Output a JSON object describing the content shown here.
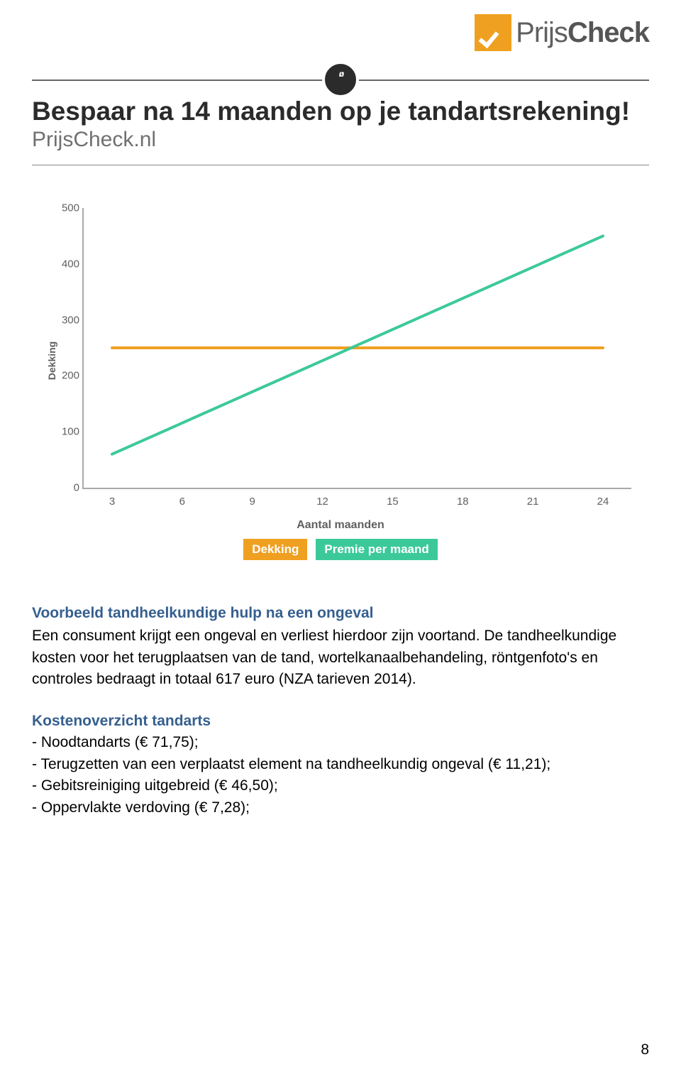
{
  "logo": {
    "prefix": "Prijs",
    "suffix": "Check",
    "prefix_color": "#7a7a7a",
    "suffix_color": "#555555",
    "badge_bg": "#f0a020"
  },
  "quote": {
    "headline": "Bespaar na 14 maanden op je tandartsrekening!",
    "subhead": "PrijsCheck.nl",
    "headline_color": "#2b2b2b",
    "subhead_color": "#707070",
    "rule_color": "#666666",
    "bubble_bg": "#2b2b2b",
    "bubble_glyph": "‘’"
  },
  "chart": {
    "type": "line",
    "ylabel": "Dekking",
    "xlabel": "Aantal maanden",
    "ylim": [
      0,
      500
    ],
    "yticks": [
      0,
      100,
      200,
      300,
      400,
      500
    ],
    "xlim": [
      3,
      24
    ],
    "xticks": [
      3,
      6,
      9,
      12,
      15,
      18,
      21,
      24
    ],
    "axis_color": "#a8a8a8",
    "tick_color": "#606060",
    "tick_fontsize": 15,
    "label_fontsize": 16,
    "line_width": 4,
    "series": [
      {
        "name": "Dekking",
        "color": "#f0a020",
        "x": [
          3,
          24
        ],
        "y": [
          250,
          250
        ]
      },
      {
        "name": "Premie per maand",
        "color": "#3cc99a",
        "x": [
          3,
          24
        ],
        "y": [
          60,
          450
        ]
      }
    ],
    "legend": [
      {
        "label": "Dekking",
        "bg": "#f0a020"
      },
      {
        "label": "Premie per maand",
        "bg": "#3cc99a"
      }
    ]
  },
  "body": {
    "title": "Voorbeeld tandheelkundige hulp na een ongeval",
    "para": "Een consument krijgt een ongeval en verliest hierdoor zijn voortand. De tandheelkundige kosten voor het terugplaatsen van de tand, wortelkanaalbehandeling, röntgenfoto's en controles bedraagt in totaal 617 euro (NZA tarieven 2014).",
    "cost_heading": "Kostenoverzicht tandarts",
    "cost_items": [
      "- Noodtandarts (€ 71,75);",
      "- Terugzetten van een verplaatst element na tandheelkundig ongeval (€ 11,21);",
      "- Gebitsreiniging uitgebreid (€ 46,50);",
      "- Oppervlakte verdoving (€ 7,28);"
    ]
  },
  "page_number": "8"
}
